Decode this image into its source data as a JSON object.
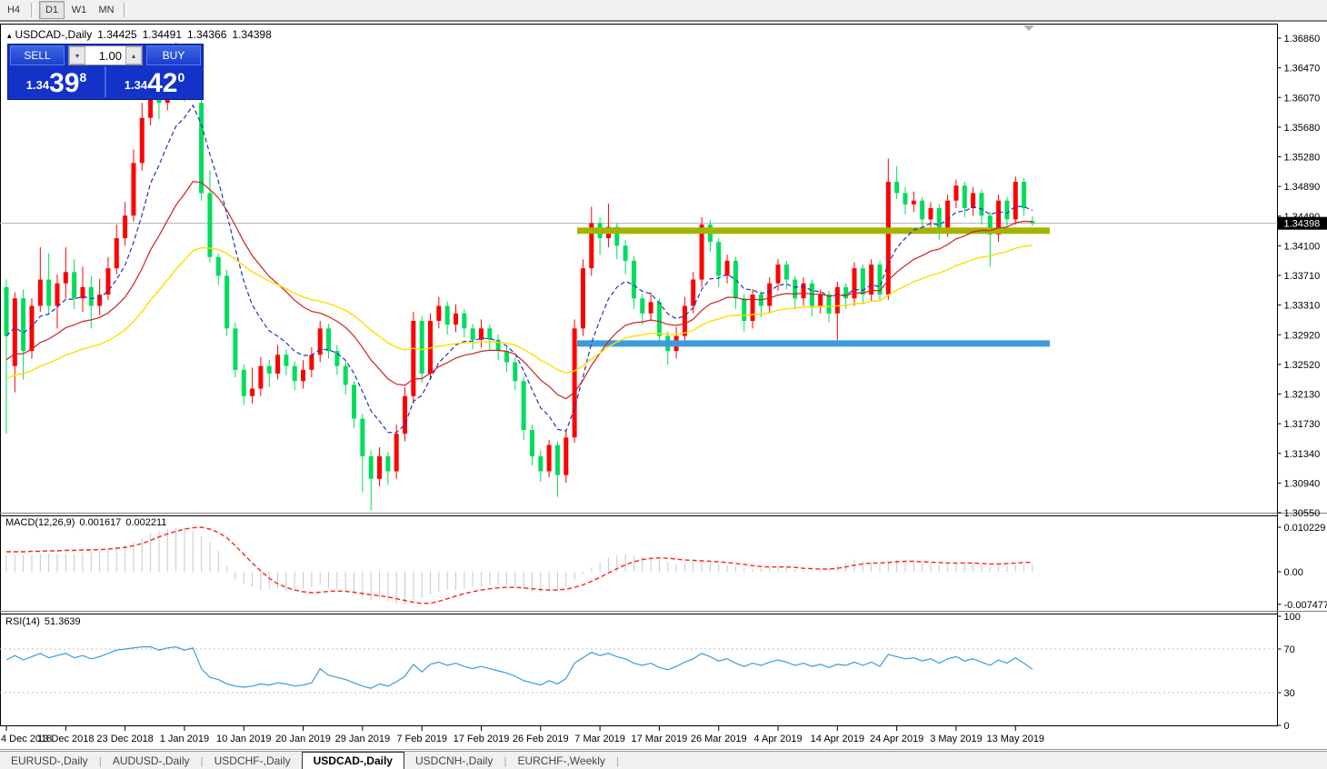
{
  "toolbar": {
    "timeframes": [
      {
        "label": "H4",
        "active": false
      },
      {
        "label": "D1",
        "active": true
      },
      {
        "label": "W1",
        "active": false
      },
      {
        "label": "MN",
        "active": false
      }
    ]
  },
  "header": {
    "collapse_icon": "▴",
    "symbol": "USDCAD-,Daily",
    "open": "1.34425",
    "high": "1.34491",
    "low": "1.34366",
    "close": "1.34398"
  },
  "trade_panel": {
    "sell_label": "SELL",
    "buy_label": "BUY",
    "volume": "1.00",
    "down_arrow": "▾",
    "up_arrow": "▴",
    "sell_price": {
      "prefix": "1.34",
      "big": "39",
      "sup": "8"
    },
    "buy_price": {
      "prefix": "1.34",
      "big": "42",
      "sup": "0"
    }
  },
  "price_axis": {
    "max": 1.3686,
    "min": 1.3055,
    "labels": [
      "1.36860",
      "1.36470",
      "1.36070",
      "1.35680",
      "1.35280",
      "1.34890",
      "1.34490",
      "1.34100",
      "1.33710",
      "1.33310",
      "1.32920",
      "1.32520",
      "1.32130",
      "1.31730",
      "1.31340",
      "1.30940",
      "1.30550"
    ],
    "current": "1.34398",
    "current_value": 1.34398
  },
  "date_axis": [
    "4 Dec 2018",
    "13 Dec 2018",
    "23 Dec 2018",
    "1 Jan 2019",
    "10 Jan 2019",
    "20 Jan 2019",
    "29 Jan 2019",
    "7 Feb 2019",
    "17 Feb 2019",
    "26 Feb 2019",
    "7 Mar 2019",
    "17 Mar 2019",
    "26 Mar 2019",
    "4 Apr 2019",
    "14 Apr 2019",
    "24 Apr 2019",
    "3 May 2019",
    "13 May 2019"
  ],
  "levels": [
    {
      "name": "resistance-band",
      "price": 1.343,
      "color": "#a3b400"
    },
    {
      "name": "support-band",
      "price": 1.328,
      "color": "#3e9bdb"
    }
  ],
  "colors": {
    "bull_candle": "#ff0000",
    "bear_candle": "#00dd5c",
    "ma_fast": "#2233bb",
    "ma_mid": "#cc2222",
    "ma_slow": "#ffdd00",
    "macd_hist": "#c8c8c8",
    "macd_signal": "#ff2222",
    "rsi_line": "#3e9ade",
    "current_line": "#b0b0b0"
  },
  "tabs": [
    {
      "label": "EURUSD-,Daily",
      "active": false
    },
    {
      "label": "AUDUSD-,Daily",
      "active": false
    },
    {
      "label": "USDCHF-,Daily",
      "active": false
    },
    {
      "label": "USDCAD-,Daily",
      "active": true
    },
    {
      "label": "USDCNH-,Daily",
      "active": false
    },
    {
      "label": "EURCHF-,Weekly",
      "active": false
    }
  ],
  "chart_data": {
    "type": "candlestick",
    "symbol": "USDCAD-,Daily",
    "note": "red body = up day, green body = down day",
    "candles": [
      [
        1.3355,
        1.3365,
        1.316,
        1.329
      ],
      [
        1.325,
        1.3348,
        1.3215,
        1.334
      ],
      [
        1.334,
        1.3352,
        1.3232,
        1.327
      ],
      [
        1.327,
        1.334,
        1.326,
        1.333
      ],
      [
        1.333,
        1.3408,
        1.3322,
        1.3365
      ],
      [
        1.3365,
        1.34,
        1.3318,
        1.333
      ],
      [
        1.333,
        1.3372,
        1.33,
        1.336
      ],
      [
        1.336,
        1.3408,
        1.334,
        1.3375
      ],
      [
        1.3375,
        1.3392,
        1.3326,
        1.334
      ],
      [
        1.334,
        1.3382,
        1.3322,
        1.3355
      ],
      [
        1.3355,
        1.337,
        1.33,
        1.333
      ],
      [
        1.333,
        1.3366,
        1.3318,
        1.3345
      ],
      [
        1.3345,
        1.3395,
        1.3338,
        1.338
      ],
      [
        1.338,
        1.3438,
        1.3372,
        1.342
      ],
      [
        1.342,
        1.3468,
        1.341,
        1.345
      ],
      [
        1.345,
        1.3538,
        1.3442,
        1.352
      ],
      [
        1.352,
        1.36,
        1.351,
        1.358
      ],
      [
        1.358,
        1.3668,
        1.357,
        1.364
      ],
      [
        1.364,
        1.3662,
        1.3578,
        1.36
      ],
      [
        1.36,
        1.3655,
        1.359,
        1.364
      ],
      [
        1.364,
        1.368,
        1.3625,
        1.3655
      ],
      [
        1.3655,
        1.3672,
        1.3602,
        1.362
      ],
      [
        1.362,
        1.3664,
        1.361,
        1.3655
      ],
      [
        1.36,
        1.3608,
        1.347,
        1.348
      ],
      [
        1.348,
        1.351,
        1.3388,
        1.3395
      ],
      [
        1.3395,
        1.34,
        1.3358,
        1.337
      ],
      [
        1.337,
        1.3378,
        1.329,
        1.33
      ],
      [
        1.33,
        1.3308,
        1.3235,
        1.3245
      ],
      [
        1.3245,
        1.3252,
        1.3198,
        1.321
      ],
      [
        1.321,
        1.3248,
        1.32,
        1.322
      ],
      [
        1.322,
        1.3262,
        1.321,
        1.325
      ],
      [
        1.325,
        1.3258,
        1.3222,
        1.324
      ],
      [
        1.324,
        1.3278,
        1.3232,
        1.3265
      ],
      [
        1.3265,
        1.3272,
        1.3238,
        1.325
      ],
      [
        1.325,
        1.3256,
        1.3218,
        1.323
      ],
      [
        1.323,
        1.3258,
        1.322,
        1.3245
      ],
      [
        1.3245,
        1.3275,
        1.3235,
        1.3265
      ],
      [
        1.3265,
        1.331,
        1.3255,
        1.33
      ],
      [
        1.33,
        1.3306,
        1.326,
        1.327
      ],
      [
        1.327,
        1.3278,
        1.3238,
        1.325
      ],
      [
        1.325,
        1.3256,
        1.3212,
        1.3225
      ],
      [
        1.3225,
        1.323,
        1.3168,
        1.318
      ],
      [
        1.318,
        1.3186,
        1.3082,
        1.313
      ],
      [
        1.313,
        1.3138,
        1.3058,
        1.31
      ],
      [
        1.31,
        1.3142,
        1.309,
        1.313
      ],
      [
        1.313,
        1.3136,
        1.3092,
        1.311
      ],
      [
        1.311,
        1.3172,
        1.31,
        1.316
      ],
      [
        1.316,
        1.3222,
        1.315,
        1.321
      ],
      [
        1.321,
        1.3322,
        1.32,
        1.331
      ],
      [
        1.331,
        1.3316,
        1.3228,
        1.324
      ],
      [
        1.324,
        1.332,
        1.3232,
        1.331
      ],
      [
        1.331,
        1.3342,
        1.33,
        1.333
      ],
      [
        1.333,
        1.3336,
        1.3292,
        1.3305
      ],
      [
        1.3305,
        1.3332,
        1.3295,
        1.332
      ],
      [
        1.332,
        1.3326,
        1.3288,
        1.33
      ],
      [
        1.33,
        1.3306,
        1.3272,
        1.3285
      ],
      [
        1.3285,
        1.3312,
        1.3275,
        1.33
      ],
      [
        1.33,
        1.3305,
        1.3272,
        1.3285
      ],
      [
        1.3285,
        1.3292,
        1.3258,
        1.327
      ],
      [
        1.327,
        1.3276,
        1.3242,
        1.3255
      ],
      [
        1.3255,
        1.3262,
        1.3218,
        1.323
      ],
      [
        1.323,
        1.3236,
        1.3152,
        1.3165
      ],
      [
        1.3165,
        1.3172,
        1.3118,
        1.313
      ],
      [
        1.313,
        1.3138,
        1.3096,
        1.311
      ],
      [
        1.311,
        1.3152,
        1.3102,
        1.3145
      ],
      [
        1.3145,
        1.315,
        1.3076,
        1.3105
      ],
      [
        1.3105,
        1.3165,
        1.3095,
        1.3155
      ],
      [
        1.3155,
        1.3312,
        1.3148,
        1.33
      ],
      [
        1.33,
        1.3392,
        1.329,
        1.338
      ],
      [
        1.338,
        1.3462,
        1.337,
        1.344
      ],
      [
        1.344,
        1.3448,
        1.3398,
        1.342
      ],
      [
        1.342,
        1.3466,
        1.3408,
        1.3435
      ],
      [
        1.3435,
        1.344,
        1.3392,
        1.341
      ],
      [
        1.341,
        1.3418,
        1.3372,
        1.339
      ],
      [
        1.339,
        1.3396,
        1.3326,
        1.334
      ],
      [
        1.334,
        1.3346,
        1.3305,
        1.332
      ],
      [
        1.332,
        1.3348,
        1.331,
        1.3335
      ],
      [
        1.3335,
        1.334,
        1.3276,
        1.329
      ],
      [
        1.329,
        1.3296,
        1.3252,
        1.327
      ],
      [
        1.327,
        1.3302,
        1.326,
        1.329
      ],
      [
        1.329,
        1.3342,
        1.328,
        1.333
      ],
      [
        1.333,
        1.3375,
        1.332,
        1.3365
      ],
      [
        1.3365,
        1.3448,
        1.3355,
        1.3438
      ],
      [
        1.3438,
        1.3444,
        1.3402,
        1.3415
      ],
      [
        1.3415,
        1.342,
        1.3355,
        1.337
      ],
      [
        1.337,
        1.3398,
        1.336,
        1.339
      ],
      [
        1.339,
        1.3395,
        1.3326,
        1.334
      ],
      [
        1.334,
        1.3346,
        1.3296,
        1.331
      ],
      [
        1.331,
        1.3352,
        1.33,
        1.3345
      ],
      [
        1.3345,
        1.335,
        1.3315,
        1.333
      ],
      [
        1.333,
        1.3368,
        1.332,
        1.336
      ],
      [
        1.336,
        1.3392,
        1.335,
        1.3385
      ],
      [
        1.3385,
        1.339,
        1.3352,
        1.3365
      ],
      [
        1.3365,
        1.337,
        1.3326,
        1.334
      ],
      [
        1.334,
        1.3368,
        1.333,
        1.336
      ],
      [
        1.336,
        1.3365,
        1.3316,
        1.333
      ],
      [
        1.333,
        1.3352,
        1.332,
        1.3345
      ],
      [
        1.3345,
        1.335,
        1.3308,
        1.332
      ],
      [
        1.332,
        1.3362,
        1.3284,
        1.3355
      ],
      [
        1.3355,
        1.336,
        1.3326,
        1.334
      ],
      [
        1.334,
        1.3388,
        1.333,
        1.338
      ],
      [
        1.338,
        1.3385,
        1.3332,
        1.3345
      ],
      [
        1.3345,
        1.3392,
        1.3336,
        1.3385
      ],
      [
        1.3385,
        1.339,
        1.3336,
        1.3345
      ],
      [
        1.3345,
        1.3526,
        1.3338,
        1.3495
      ],
      [
        1.3495,
        1.3516,
        1.3472,
        1.348
      ],
      [
        1.348,
        1.3488,
        1.3452,
        1.3465
      ],
      [
        1.3465,
        1.3482,
        1.3455,
        1.347
      ],
      [
        1.347,
        1.3475,
        1.3432,
        1.3445
      ],
      [
        1.3445,
        1.3468,
        1.3435,
        1.346
      ],
      [
        1.346,
        1.3465,
        1.3418,
        1.343
      ],
      [
        1.343,
        1.3478,
        1.3422,
        1.347
      ],
      [
        1.347,
        1.3498,
        1.346,
        1.349
      ],
      [
        1.349,
        1.3495,
        1.3448,
        1.346
      ],
      [
        1.346,
        1.3488,
        1.345,
        1.348
      ],
      [
        1.348,
        1.3485,
        1.3438,
        1.345
      ],
      [
        1.345,
        1.3455,
        1.3382,
        1.3425
      ],
      [
        1.3425,
        1.3478,
        1.3415,
        1.347
      ],
      [
        1.347,
        1.3475,
        1.3435,
        1.3445
      ],
      [
        1.3445,
        1.3502,
        1.3438,
        1.3495
      ],
      [
        1.3495,
        1.35,
        1.345,
        1.346
      ],
      [
        1.34425,
        1.34491,
        1.34366,
        1.34398
      ]
    ],
    "macd": {
      "label": "MACD(12,26,9)",
      "value": "0.001617",
      "signal_value": "0.002211",
      "scale_labels": [
        "0.010229",
        "0.00",
        "-0.007477"
      ],
      "scale_values": [
        0.010229,
        0,
        -0.007477
      ],
      "hist": [
        0.0038,
        0.0038,
        0.0038,
        0.0039,
        0.0042,
        0.0042,
        0.0042,
        0.0043,
        0.0042,
        0.0043,
        0.0044,
        0.0048,
        0.0052,
        0.0057,
        0.0062,
        0.0068,
        0.0078,
        0.0088,
        0.0094,
        0.0098,
        0.0101,
        0.0102,
        0.0095,
        0.0082,
        0.0068,
        0.0048,
        0.0012,
        -0.0018,
        -0.0028,
        -0.0035,
        -0.0042,
        -0.004,
        -0.0038,
        -0.0045,
        -0.0042,
        -0.0038,
        -0.0035,
        -0.003,
        -0.0038,
        -0.004,
        -0.0044,
        -0.005,
        -0.0058,
        -0.0065,
        -0.006,
        -0.0068,
        -0.0072,
        -0.0075,
        -0.0065,
        -0.006,
        -0.0052,
        -0.0045,
        -0.004,
        -0.0042,
        -0.0038,
        -0.0035,
        -0.0035,
        -0.0032,
        -0.003,
        -0.0032,
        -0.0035,
        -0.004,
        -0.0045,
        -0.0048,
        -0.0045,
        -0.0042,
        -0.0035,
        -0.002,
        -0.0005,
        0.001,
        0.0022,
        0.0032,
        0.0038,
        0.004,
        0.0038,
        0.0035,
        0.0032,
        0.0028,
        0.0022,
        0.0018,
        0.002,
        0.0022,
        0.0025,
        0.0022,
        0.0018,
        0.0015,
        0.0012,
        0.0008,
        0.0006,
        0.0008,
        0.001,
        0.0012,
        0.001,
        0.0006,
        0.0004,
        0.0003,
        0.0004,
        0.0008,
        0.0015,
        0.0022,
        0.0028,
        0.0025,
        0.0022,
        0.0018,
        0.0025,
        0.0028,
        0.0025,
        0.0022,
        0.002,
        0.0018,
        0.0015,
        0.0018,
        0.002,
        0.0018,
        0.002,
        0.0016,
        0.0012,
        0.0015,
        0.0014,
        0.0018,
        0.0016,
        0.0016
      ],
      "signal": [
        0.0046,
        0.0046,
        0.0046,
        0.0047,
        0.0047,
        0.0048,
        0.0048,
        0.0049,
        0.0049,
        0.005,
        0.005,
        0.0051,
        0.0052,
        0.0054,
        0.0056,
        0.006,
        0.0065,
        0.0072,
        0.008,
        0.0087,
        0.0093,
        0.0098,
        0.0101,
        0.0102,
        0.0098,
        0.009,
        0.0078,
        0.006,
        0.004,
        0.002,
        0.0002,
        -0.0015,
        -0.0028,
        -0.0036,
        -0.0042,
        -0.0046,
        -0.0048,
        -0.0047,
        -0.0045,
        -0.0044,
        -0.0045,
        -0.0047,
        -0.005,
        -0.0053,
        -0.0055,
        -0.0058,
        -0.0062,
        -0.0066,
        -0.007,
        -0.0073,
        -0.0072,
        -0.0068,
        -0.0062,
        -0.0056,
        -0.005,
        -0.0046,
        -0.0042,
        -0.0039,
        -0.0037,
        -0.0036,
        -0.0036,
        -0.0037,
        -0.0039,
        -0.0041,
        -0.0042,
        -0.0042,
        -0.004,
        -0.0036,
        -0.003,
        -0.0022,
        -0.0013,
        -0.0003,
        0.0007,
        0.0016,
        0.0023,
        0.0028,
        0.0031,
        0.0032,
        0.0031,
        0.0029,
        0.0027,
        0.0026,
        0.0025,
        0.0024,
        0.0023,
        0.0021,
        0.0019,
        0.0017,
        0.0014,
        0.0012,
        0.0011,
        0.0011,
        0.0011,
        0.001,
        0.0008,
        0.0007,
        0.0006,
        0.0006,
        0.0008,
        0.0011,
        0.0015,
        0.0018,
        0.002,
        0.002,
        0.0021,
        0.0023,
        0.0024,
        0.0024,
        0.0023,
        0.0022,
        0.0021,
        0.002,
        0.002,
        0.002,
        0.002,
        0.0019,
        0.0018,
        0.0018,
        0.0019,
        0.002,
        0.0021,
        0.0022
      ]
    },
    "rsi": {
      "label": "RSI(14)",
      "value": "51.3639",
      "scale_labels": [
        "100",
        "70",
        "30",
        "0"
      ],
      "scale_values": [
        100,
        70,
        30,
        0
      ],
      "level_lines": [
        70,
        30
      ],
      "values": [
        60,
        64,
        60,
        63,
        66,
        62,
        64,
        66,
        62,
        64,
        61,
        63,
        66,
        69,
        70,
        71,
        72,
        72,
        69,
        71,
        72,
        69,
        71,
        52,
        44,
        42,
        38,
        36,
        35,
        36,
        38,
        37,
        39,
        38,
        36,
        37,
        39,
        52,
        46,
        44,
        42,
        39,
        36,
        34,
        38,
        36,
        40,
        45,
        56,
        49,
        56,
        58,
        55,
        57,
        54,
        52,
        54,
        52,
        50,
        48,
        45,
        41,
        39,
        37,
        41,
        38,
        43,
        57,
        62,
        67,
        64,
        66,
        63,
        61,
        57,
        55,
        57,
        53,
        51,
        54,
        58,
        61,
        66,
        63,
        59,
        61,
        57,
        54,
        57,
        55,
        58,
        60,
        58,
        55,
        57,
        54,
        56,
        53,
        56,
        55,
        58,
        55,
        58,
        54,
        65,
        63,
        61,
        62,
        59,
        61,
        57,
        61,
        63,
        59,
        61,
        58,
        55,
        60,
        57,
        62,
        57,
        51.4
      ]
    }
  }
}
